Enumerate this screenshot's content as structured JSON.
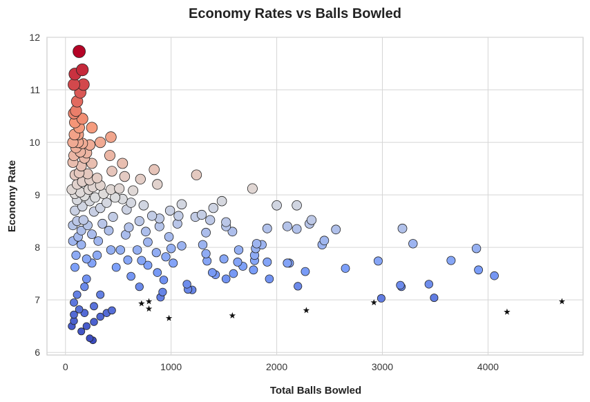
{
  "chart_data": {
    "type": "scatter",
    "title": "Economy Rates vs Balls Bowled",
    "xlabel": "Total Balls Bowled",
    "ylabel": "Economy Rate",
    "xlim": [
      -175,
      4900
    ],
    "ylim": [
      5.95,
      12.0
    ],
    "xticks": [
      0,
      1000,
      2000,
      3000,
      4000
    ],
    "yticks": [
      6,
      7,
      8,
      9,
      10,
      11,
      12
    ],
    "xtick_labels": [
      "0",
      "1000",
      "2000",
      "3000",
      "4000"
    ],
    "ytick_labels": [
      "6",
      "7",
      "8",
      "9",
      "10",
      "11",
      "12"
    ],
    "grid": true,
    "colormap": "coolwarm",
    "color_encodes": "Economy Rate",
    "size_encodes": "Economy Rate",
    "marker_note": "star markers highlight selected low-economy bowlers",
    "points": [
      [
        130,
        11.73
      ],
      [
        160,
        11.38
      ],
      [
        90,
        11.3
      ],
      [
        170,
        11.1
      ],
      [
        80,
        11.1
      ],
      [
        140,
        10.95
      ],
      [
        110,
        10.78
      ],
      [
        100,
        10.6
      ],
      [
        80,
        10.55
      ],
      [
        160,
        10.45
      ],
      [
        90,
        10.38
      ],
      [
        130,
        10.28
      ],
      [
        250,
        10.28
      ],
      [
        120,
        10.15
      ],
      [
        85,
        10.15
      ],
      [
        430,
        10.1
      ],
      [
        120,
        10.0
      ],
      [
        70,
        10.0
      ],
      [
        160,
        9.98
      ],
      [
        330,
        10.0
      ],
      [
        230,
        9.95
      ],
      [
        100,
        9.9
      ],
      [
        140,
        9.82
      ],
      [
        200,
        9.8
      ],
      [
        80,
        9.75
      ],
      [
        420,
        9.75
      ],
      [
        180,
        9.7
      ],
      [
        70,
        9.62
      ],
      [
        250,
        9.6
      ],
      [
        540,
        9.6
      ],
      [
        150,
        9.55
      ],
      [
        840,
        9.48
      ],
      [
        440,
        9.45
      ],
      [
        130,
        9.42
      ],
      [
        210,
        9.4
      ],
      [
        90,
        9.38
      ],
      [
        1240,
        9.38
      ],
      [
        560,
        9.35
      ],
      [
        300,
        9.32
      ],
      [
        710,
        9.3
      ],
      [
        230,
        9.28
      ],
      [
        160,
        9.25
      ],
      [
        870,
        9.2
      ],
      [
        110,
        9.2
      ],
      [
        330,
        9.18
      ],
      [
        260,
        9.15
      ],
      [
        510,
        9.12
      ],
      [
        1770,
        9.12
      ],
      [
        60,
        9.1
      ],
      [
        220,
        9.1
      ],
      [
        430,
        9.1
      ],
      [
        640,
        9.08
      ],
      [
        140,
        9.05
      ],
      [
        90,
        9.02
      ],
      [
        360,
        9.02
      ],
      [
        180,
        8.98
      ],
      [
        280,
        8.95
      ],
      [
        470,
        8.95
      ],
      [
        540,
        8.92
      ],
      [
        110,
        8.9
      ],
      [
        1480,
        8.88
      ],
      [
        230,
        8.88
      ],
      [
        390,
        8.85
      ],
      [
        620,
        8.85
      ],
      [
        1100,
        8.82
      ],
      [
        2000,
        8.8
      ],
      [
        2190,
        8.8
      ],
      [
        740,
        8.8
      ],
      [
        160,
        8.78
      ],
      [
        330,
        8.75
      ],
      [
        1400,
        8.75
      ],
      [
        580,
        8.72
      ],
      [
        990,
        8.7
      ],
      [
        90,
        8.7
      ],
      [
        270,
        8.68
      ],
      [
        1070,
        8.6
      ],
      [
        820,
        8.6
      ],
      [
        450,
        8.58
      ],
      [
        1230,
        8.58
      ],
      [
        1290,
        8.62
      ],
      [
        890,
        8.55
      ],
      [
        2330,
        8.52
      ],
      [
        170,
        8.52
      ],
      [
        1370,
        8.52
      ],
      [
        700,
        8.5
      ],
      [
        110,
        8.5
      ],
      [
        1520,
        8.48
      ],
      [
        2310,
        8.45
      ],
      [
        350,
        8.45
      ],
      [
        1060,
        8.45
      ],
      [
        210,
        8.42
      ],
      [
        70,
        8.42
      ],
      [
        2100,
        8.4
      ],
      [
        1520,
        8.4
      ],
      [
        890,
        8.4
      ],
      [
        600,
        8.38
      ],
      [
        1910,
        8.36
      ],
      [
        3190,
        8.36
      ],
      [
        2190,
        8.35
      ],
      [
        2560,
        8.34
      ],
      [
        150,
        8.32
      ],
      [
        410,
        8.32
      ],
      [
        1580,
        8.3
      ],
      [
        760,
        8.3
      ],
      [
        1330,
        8.28
      ],
      [
        250,
        8.25
      ],
      [
        570,
        8.24
      ],
      [
        120,
        8.2
      ],
      [
        980,
        8.2
      ],
      [
        2450,
        8.13
      ],
      [
        70,
        8.12
      ],
      [
        310,
        8.12
      ],
      [
        780,
        8.1
      ],
      [
        3290,
        8.07
      ],
      [
        1810,
        8.07
      ],
      [
        1300,
        8.05
      ],
      [
        1100,
        8.03
      ],
      [
        2430,
        8.05
      ],
      [
        1860,
        8.05
      ],
      [
        1640,
        7.95
      ],
      [
        150,
        8.05
      ],
      [
        430,
        7.95
      ],
      [
        680,
        7.95
      ],
      [
        3890,
        7.98
      ],
      [
        520,
        7.95
      ],
      [
        1800,
        7.98
      ],
      [
        1000,
        7.98
      ],
      [
        860,
        7.9
      ],
      [
        1330,
        7.88
      ],
      [
        100,
        7.85
      ],
      [
        300,
        7.85
      ],
      [
        1790,
        7.85
      ],
      [
        950,
        7.82
      ],
      [
        2650,
        7.6
      ],
      [
        1500,
        7.78
      ],
      [
        200,
        7.78
      ],
      [
        590,
        7.76
      ],
      [
        1790,
        7.75
      ],
      [
        720,
        7.75
      ],
      [
        2960,
        7.74
      ],
      [
        3650,
        7.75
      ],
      [
        1340,
        7.74
      ],
      [
        1910,
        7.72
      ],
      [
        1630,
        7.72
      ],
      [
        2120,
        7.7
      ],
      [
        250,
        7.7
      ],
      [
        1020,
        7.7
      ],
      [
        2100,
        7.7
      ],
      [
        780,
        7.66
      ],
      [
        1680,
        7.64
      ],
      [
        90,
        7.62
      ],
      [
        480,
        7.62
      ],
      [
        3910,
        7.57
      ],
      [
        1780,
        7.57
      ],
      [
        2270,
        7.54
      ],
      [
        870,
        7.52
      ],
      [
        1590,
        7.5
      ],
      [
        1390,
        7.52
      ],
      [
        1420,
        7.48
      ],
      [
        4060,
        7.46
      ],
      [
        1520,
        7.4
      ],
      [
        620,
        7.45
      ],
      [
        1930,
        7.4
      ],
      [
        200,
        7.4
      ],
      [
        1150,
        7.3
      ],
      [
        930,
        7.38
      ],
      [
        3440,
        7.3
      ],
      [
        3170,
        7.28
      ],
      [
        2200,
        7.26
      ],
      [
        700,
        7.25
      ],
      [
        1160,
        7.2
      ],
      [
        1200,
        7.19
      ],
      [
        3180,
        7.25
      ],
      [
        920,
        7.15
      ],
      [
        2990,
        7.03
      ],
      [
        3490,
        7.04
      ],
      [
        900,
        7.05
      ],
      [
        180,
        7.25
      ],
      [
        330,
        7.1
      ],
      [
        110,
        7.1
      ],
      [
        130,
        6.82
      ],
      [
        80,
        6.95
      ],
      [
        270,
        6.88
      ],
      [
        180,
        6.75
      ],
      [
        390,
        6.75
      ],
      [
        80,
        6.72
      ],
      [
        440,
        6.8
      ],
      [
        330,
        6.68
      ],
      [
        80,
        6.6
      ],
      [
        270,
        6.58
      ],
      [
        200,
        6.5
      ],
      [
        60,
        6.5
      ],
      [
        150,
        6.4
      ],
      [
        230,
        6.27
      ],
      [
        260,
        6.23
      ]
    ],
    "highlighted_points": [
      [
        720,
        6.93
      ],
      [
        790,
        6.97
      ],
      [
        790,
        6.83
      ],
      [
        980,
        6.65
      ],
      [
        1580,
        6.7
      ],
      [
        2280,
        6.8
      ],
      [
        2920,
        6.95
      ],
      [
        4180,
        6.77
      ],
      [
        4700,
        6.97
      ]
    ]
  }
}
